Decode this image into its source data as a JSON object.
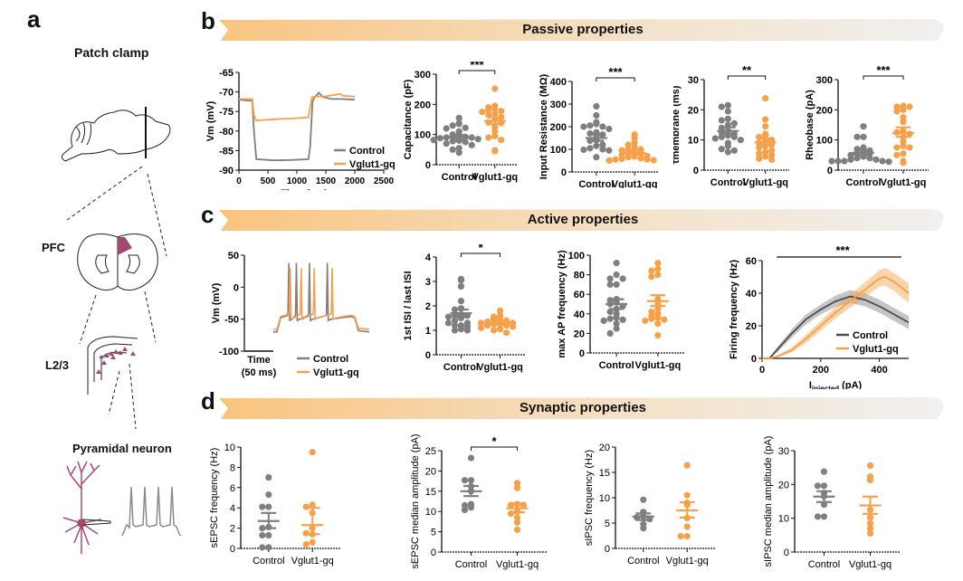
{
  "panels": {
    "a": {
      "letter": "a",
      "title": "Patch clamp",
      "labels": {
        "pfc": "PFC",
        "l23": "L2/3",
        "neuron": "Pyramidal neuron"
      }
    },
    "b": {
      "letter": "b",
      "banner": "Passive properties"
    },
    "c": {
      "letter": "c",
      "banner": "Active properties"
    },
    "d": {
      "letter": "d",
      "banner": "Synaptic properties"
    }
  },
  "colors": {
    "control": "#7f7f7f",
    "vglut": "#f7a04a",
    "control_dark": "#4d4d4d",
    "brain_region": "#a54a6e",
    "banner_start": "#f9c47f",
    "banner_end": "#f0f0f0"
  },
  "chart_data": [
    {
      "id": "b-trace",
      "type": "line",
      "title": "",
      "xlabel": "Time (ms)",
      "ylabel": "Vm (mV)",
      "xlim": [
        0,
        2500
      ],
      "ylim": [
        -90,
        -65
      ],
      "xticks": [
        0,
        500,
        1000,
        1500,
        2000,
        2500
      ],
      "yticks": [
        -90,
        -85,
        -80,
        -75,
        -70,
        -65
      ],
      "legend": {
        "position": "bottom-right",
        "entries": [
          "Control",
          "Vglut1-gq"
        ]
      },
      "series": [
        {
          "name": "Control",
          "x": [
            0,
            230,
            260,
            300,
            600,
            900,
            1200,
            1230,
            1270,
            1300,
            1380,
            1450,
            1600,
            1800,
            2000
          ],
          "y": [
            -72,
            -72.3,
            -80,
            -87.2,
            -87.5,
            -87.4,
            -87.2,
            -84,
            -72.5,
            -71.5,
            -70.2,
            -71.3,
            -71.8,
            -71.8,
            -72
          ]
        },
        {
          "name": "Vglut1-gq",
          "x": [
            0,
            230,
            260,
            300,
            600,
            900,
            1200,
            1230,
            1260,
            1300,
            1500,
            1750,
            1800,
            2000
          ],
          "y": [
            -71.8,
            -71.8,
            -76,
            -77.3,
            -77,
            -76.8,
            -76.5,
            -74,
            -71.4,
            -71.2,
            -71.1,
            -70.5,
            -71,
            -71.2
          ]
        }
      ]
    },
    {
      "id": "b-capacitance",
      "type": "scatter",
      "ylabel": "Capacitance (pF)",
      "ylim": [
        0,
        300
      ],
      "yticks": [
        0,
        100,
        200,
        300
      ],
      "categories": [
        "Control",
        "Vglut1-gq"
      ],
      "significance": "***",
      "series": [
        {
          "name": "Control",
          "values": [
            155,
            135,
            138,
            130,
            122,
            120,
            110,
            100,
            98,
            95,
            92,
            90,
            90,
            88,
            85,
            82,
            80,
            78,
            75,
            70,
            65,
            55,
            50,
            40
          ],
          "mean": 90,
          "sem_low": 83,
          "sem_high": 98
        },
        {
          "name": "Vglut1-gq",
          "values": [
            252,
            195,
            190,
            188,
            182,
            178,
            175,
            170,
            165,
            158,
            150,
            140,
            138,
            125,
            110,
            95,
            90,
            82,
            48,
            45
          ],
          "mean": 145,
          "sem_low": 135,
          "sem_high": 157
        }
      ]
    },
    {
      "id": "b-input-resistance",
      "type": "scatter",
      "ylabel": "Input Resistance (MΩ)",
      "ylim": [
        0,
        400
      ],
      "yticks": [
        0,
        100,
        200,
        300,
        400
      ],
      "categories": [
        "Control",
        "Vglut1-gq"
      ],
      "significance": "***",
      "series": [
        {
          "name": "Control",
          "values": [
            290,
            250,
            220,
            212,
            205,
            200,
            200,
            190,
            175,
            170,
            165,
            160,
            140,
            138,
            120,
            115,
            105,
            100,
            98,
            95,
            65
          ],
          "mean": 150,
          "sem_low": 138,
          "sem_high": 168
        },
        {
          "name": "Vglut1-gq",
          "values": [
            165,
            150,
            130,
            120,
            110,
            100,
            100,
            95,
            90,
            85,
            80,
            75,
            70,
            68,
            65,
            60,
            58,
            55,
            55,
            52,
            50
          ],
          "mean": 85,
          "sem_low": 78,
          "sem_high": 95
        }
      ]
    },
    {
      "id": "b-tau",
      "type": "scatter",
      "ylabel": "τmembrane (ms)",
      "ylim": [
        0,
        30
      ],
      "yticks": [
        0,
        10,
        20,
        30
      ],
      "categories": [
        "Control",
        "Vglut1-gq"
      ],
      "significance": "**",
      "series": [
        {
          "name": "Control",
          "values": [
            21.5,
            21,
            19.5,
            17,
            16.5,
            15.5,
            15,
            14,
            13,
            12.5,
            12,
            11.5,
            11,
            11,
            10.5,
            10,
            9,
            8,
            7,
            6.5,
            6
          ],
          "mean": 13,
          "sem_low": 12,
          "sem_high": 14.2
        },
        {
          "name": "Vglut1-gq",
          "values": [
            23.8,
            16.8,
            14.5,
            12,
            11.5,
            11,
            10,
            9.5,
            9,
            8.5,
            8,
            7.5,
            6.5,
            6,
            5.5,
            5,
            4.5,
            3.8,
            3.5
          ],
          "mean": 9.2,
          "sem_low": 8.2,
          "sem_high": 10.5
        }
      ]
    },
    {
      "id": "b-rheobase",
      "type": "scatter",
      "ylabel": "Rheobase (pA)",
      "ylim": [
        0,
        300
      ],
      "yticks": [
        0,
        100,
        200,
        300
      ],
      "categories": [
        "Control",
        "Vglut1-gq"
      ],
      "significance": "***",
      "series": [
        {
          "name": "Control",
          "values": [
            145,
            110,
            110,
            75,
            70,
            65,
            60,
            55,
            55,
            50,
            45,
            40,
            40,
            35,
            35,
            30,
            30,
            30,
            28,
            30
          ],
          "mean": 58,
          "sem_low": 50,
          "sem_high": 66
        },
        {
          "name": "Vglut1-gq",
          "values": [
            213,
            210,
            210,
            200,
            195,
            175,
            160,
            130,
            125,
            120,
            110,
            95,
            80,
            75,
            75,
            55,
            50,
            30,
            25
          ],
          "mean": 123,
          "sem_low": 110,
          "sem_high": 142
        }
      ]
    },
    {
      "id": "c-trace",
      "type": "line",
      "ylabel": "Vm (mV)",
      "ylim": [
        -100,
        50
      ],
      "yticks": [
        -100,
        -50,
        0,
        50
      ],
      "scalebar": "Time (50 ms)",
      "legend": {
        "position": "bottom",
        "entries": [
          "Control",
          "Vglut1-gq"
        ]
      },
      "series": [
        {
          "name": "Control",
          "spike_times": [
            0.12,
            0.23,
            0.42,
            0.68
          ],
          "peak": 38,
          "baseline": -70,
          "plateau": -48
        },
        {
          "name": "Vglut1-gq",
          "spike_times": [
            0.14,
            0.3,
            0.49,
            0.75
          ],
          "peak": 30,
          "baseline": -66,
          "plateau": -46
        }
      ]
    },
    {
      "id": "c-isi-ratio",
      "type": "scatter",
      "ylabel": "1st ISI / last ISI",
      "ylim": [
        0,
        4
      ],
      "yticks": [
        0,
        1,
        2,
        3,
        4
      ],
      "categories": [
        "Control",
        "Vglut1-gq"
      ],
      "significance": "*",
      "series": [
        {
          "name": "Control",
          "values": [
            3.1,
            3.05,
            2.8,
            2.2,
            1.9,
            1.85,
            1.65,
            1.6,
            1.6,
            1.55,
            1.5,
            1.4,
            1.3,
            1.3,
            1.2,
            1.2,
            1.15,
            1.05,
            1.0,
            1.0
          ],
          "mean": 1.7,
          "sem_low": 1.55,
          "sem_high": 1.85
        },
        {
          "name": "Vglut1-gq",
          "values": [
            1.8,
            1.6,
            1.55,
            1.5,
            1.45,
            1.4,
            1.35,
            1.3,
            1.3,
            1.25,
            1.25,
            1.2,
            1.2,
            1.15,
            1.1,
            1.05,
            1.0,
            0.9
          ],
          "mean": 1.32,
          "sem_low": 1.25,
          "sem_high": 1.4
        }
      ]
    },
    {
      "id": "c-max-ap",
      "type": "scatter",
      "ylabel": "max AP frequency (Hz)",
      "ylim": [
        0,
        100
      ],
      "yticks": [
        0,
        20,
        40,
        60,
        80,
        100
      ],
      "categories": [
        "Control",
        "Vglut1-gq"
      ],
      "series": [
        {
          "name": "Control",
          "values": [
            92,
            80,
            76,
            76,
            70,
            70,
            55,
            54,
            52,
            50,
            48,
            45,
            42,
            40,
            36,
            35,
            34,
            33,
            30,
            25,
            20
          ],
          "mean": 50,
          "sem_low": 45,
          "sem_high": 55
        },
        {
          "name": "Vglut1-gq",
          "values": [
            92,
            86,
            84,
            80,
            78,
            55,
            50,
            45,
            42,
            40,
            38,
            36,
            35,
            34,
            33,
            30,
            18
          ],
          "mean": 53,
          "sem_low": 48,
          "sem_high": 59
        }
      ]
    },
    {
      "id": "c-fi-curve",
      "type": "line",
      "xlabel": "Iinjected (pA)",
      "ylabel": "Firing frequency (Hz)",
      "xlim": [
        0,
        500
      ],
      "ylim": [
        0,
        60
      ],
      "xticks": [
        0,
        200,
        400
      ],
      "yticks": [
        0,
        20,
        40,
        60
      ],
      "significance": "***",
      "legend": {
        "position": "bottom-right",
        "entries": [
          "Control",
          "Vglut1-gq"
        ]
      },
      "series": [
        {
          "name": "Control",
          "x": [
            0,
            25,
            50,
            100,
            150,
            200,
            250,
            300,
            350,
            400,
            450,
            500
          ],
          "y": [
            0,
            0,
            5,
            15,
            24,
            30,
            35,
            38,
            36,
            32,
            27,
            22
          ],
          "sem": [
            0,
            0,
            1.5,
            2.5,
            3,
            3,
            3.5,
            4,
            4,
            4,
            4,
            4
          ]
        },
        {
          "name": "Vglut1-gq",
          "x": [
            0,
            25,
            50,
            100,
            150,
            200,
            250,
            300,
            350,
            400,
            420,
            450,
            500
          ],
          "y": [
            0,
            0,
            1,
            5,
            12,
            20,
            28,
            35,
            42,
            49,
            50,
            47,
            40
          ],
          "sem": [
            0,
            0,
            0.5,
            1.5,
            2.5,
            3,
            3.5,
            4,
            4.5,
            5,
            5.5,
            5.5,
            6
          ]
        }
      ]
    },
    {
      "id": "d-sepsc-freq",
      "type": "scatter",
      "ylabel": "sEPSC frequency (Hz)",
      "ylim": [
        0,
        10
      ],
      "yticks": [
        0,
        2,
        4,
        6,
        8,
        10
      ],
      "categories": [
        "Control",
        "Vglut1-gq"
      ],
      "series": [
        {
          "name": "Control",
          "values": [
            7.0,
            5.3,
            4.1,
            4.1,
            2.1,
            2.0,
            1.3,
            1.3,
            0.1,
            0.1
          ],
          "mean": 2.7,
          "sem_low": 2.0,
          "sem_high": 3.5
        },
        {
          "name": "Vglut1-gq",
          "values": [
            9.5,
            4.3,
            4.1,
            3.5,
            2.0,
            1.4,
            1.5,
            0.6,
            0.4
          ],
          "mean": 2.3,
          "sem_low": 1.4,
          "sem_high": 4.0
        }
      ]
    },
    {
      "id": "d-sepsc-amp",
      "type": "scatter",
      "ylabel": "sEPSC median amplitude (pA)",
      "ylim": [
        0,
        25
      ],
      "yticks": [
        0,
        5,
        10,
        15,
        20,
        25
      ],
      "categories": [
        "Control",
        "Vglut1-gq"
      ],
      "significance": "*",
      "series": [
        {
          "name": "Control",
          "values": [
            23.2,
            17.7,
            17.7,
            16.2,
            15.0,
            11.8,
            11.5,
            11.0,
            10.4
          ],
          "mean": 15.0,
          "sem_low": 13.8,
          "sem_high": 16.3
        },
        {
          "name": "Vglut1-gq",
          "values": [
            17.0,
            15.8,
            11.8,
            11.6,
            11.6,
            10.0,
            9.5,
            8.5,
            7.3,
            5.5
          ],
          "mean": 10.8,
          "sem_low": 9.8,
          "sem_high": 12.0
        }
      ]
    },
    {
      "id": "d-sipsc-freq",
      "type": "scatter",
      "ylabel": "sIPSC frequency (Hz)",
      "ylim": [
        0,
        20
      ],
      "yticks": [
        0,
        5,
        10,
        15,
        20
      ],
      "categories": [
        "Control",
        "Vglut1-gq"
      ],
      "series": [
        {
          "name": "Control",
          "values": [
            9.6,
            7.2,
            6.3,
            6.1,
            5.8,
            4.8,
            4.0
          ],
          "mean": 6.3,
          "sem_low": 5.6,
          "sem_high": 6.9
        },
        {
          "name": "Vglut1-gq",
          "values": [
            16.4,
            10.5,
            9.0,
            8.6,
            6.0,
            4.3,
            2.4,
            2.4
          ],
          "mean": 7.5,
          "sem_low": 6.1,
          "sem_high": 9.1
        }
      ]
    },
    {
      "id": "d-sipsc-amp",
      "type": "scatter",
      "ylabel": "sIPSC median amplitude (pA)",
      "ylim": [
        0,
        30
      ],
      "yticks": [
        0,
        10,
        20,
        30
      ],
      "categories": [
        "Control",
        "Vglut1-gq"
      ],
      "series": [
        {
          "name": "Control",
          "values": [
            23.8,
            19.6,
            19.6,
            17.5,
            16.5,
            14.0,
            10.5,
            10.5
          ],
          "mean": 16.4,
          "sem_low": 14.8,
          "sem_high": 18.0
        },
        {
          "name": "Vglut1-gq",
          "values": [
            25.6,
            22.3,
            21.3,
            12.5,
            10.2,
            8.5,
            7.0,
            5.5
          ],
          "mean": 13.8,
          "sem_low": 11.3,
          "sem_high": 16.4
        }
      ]
    }
  ]
}
